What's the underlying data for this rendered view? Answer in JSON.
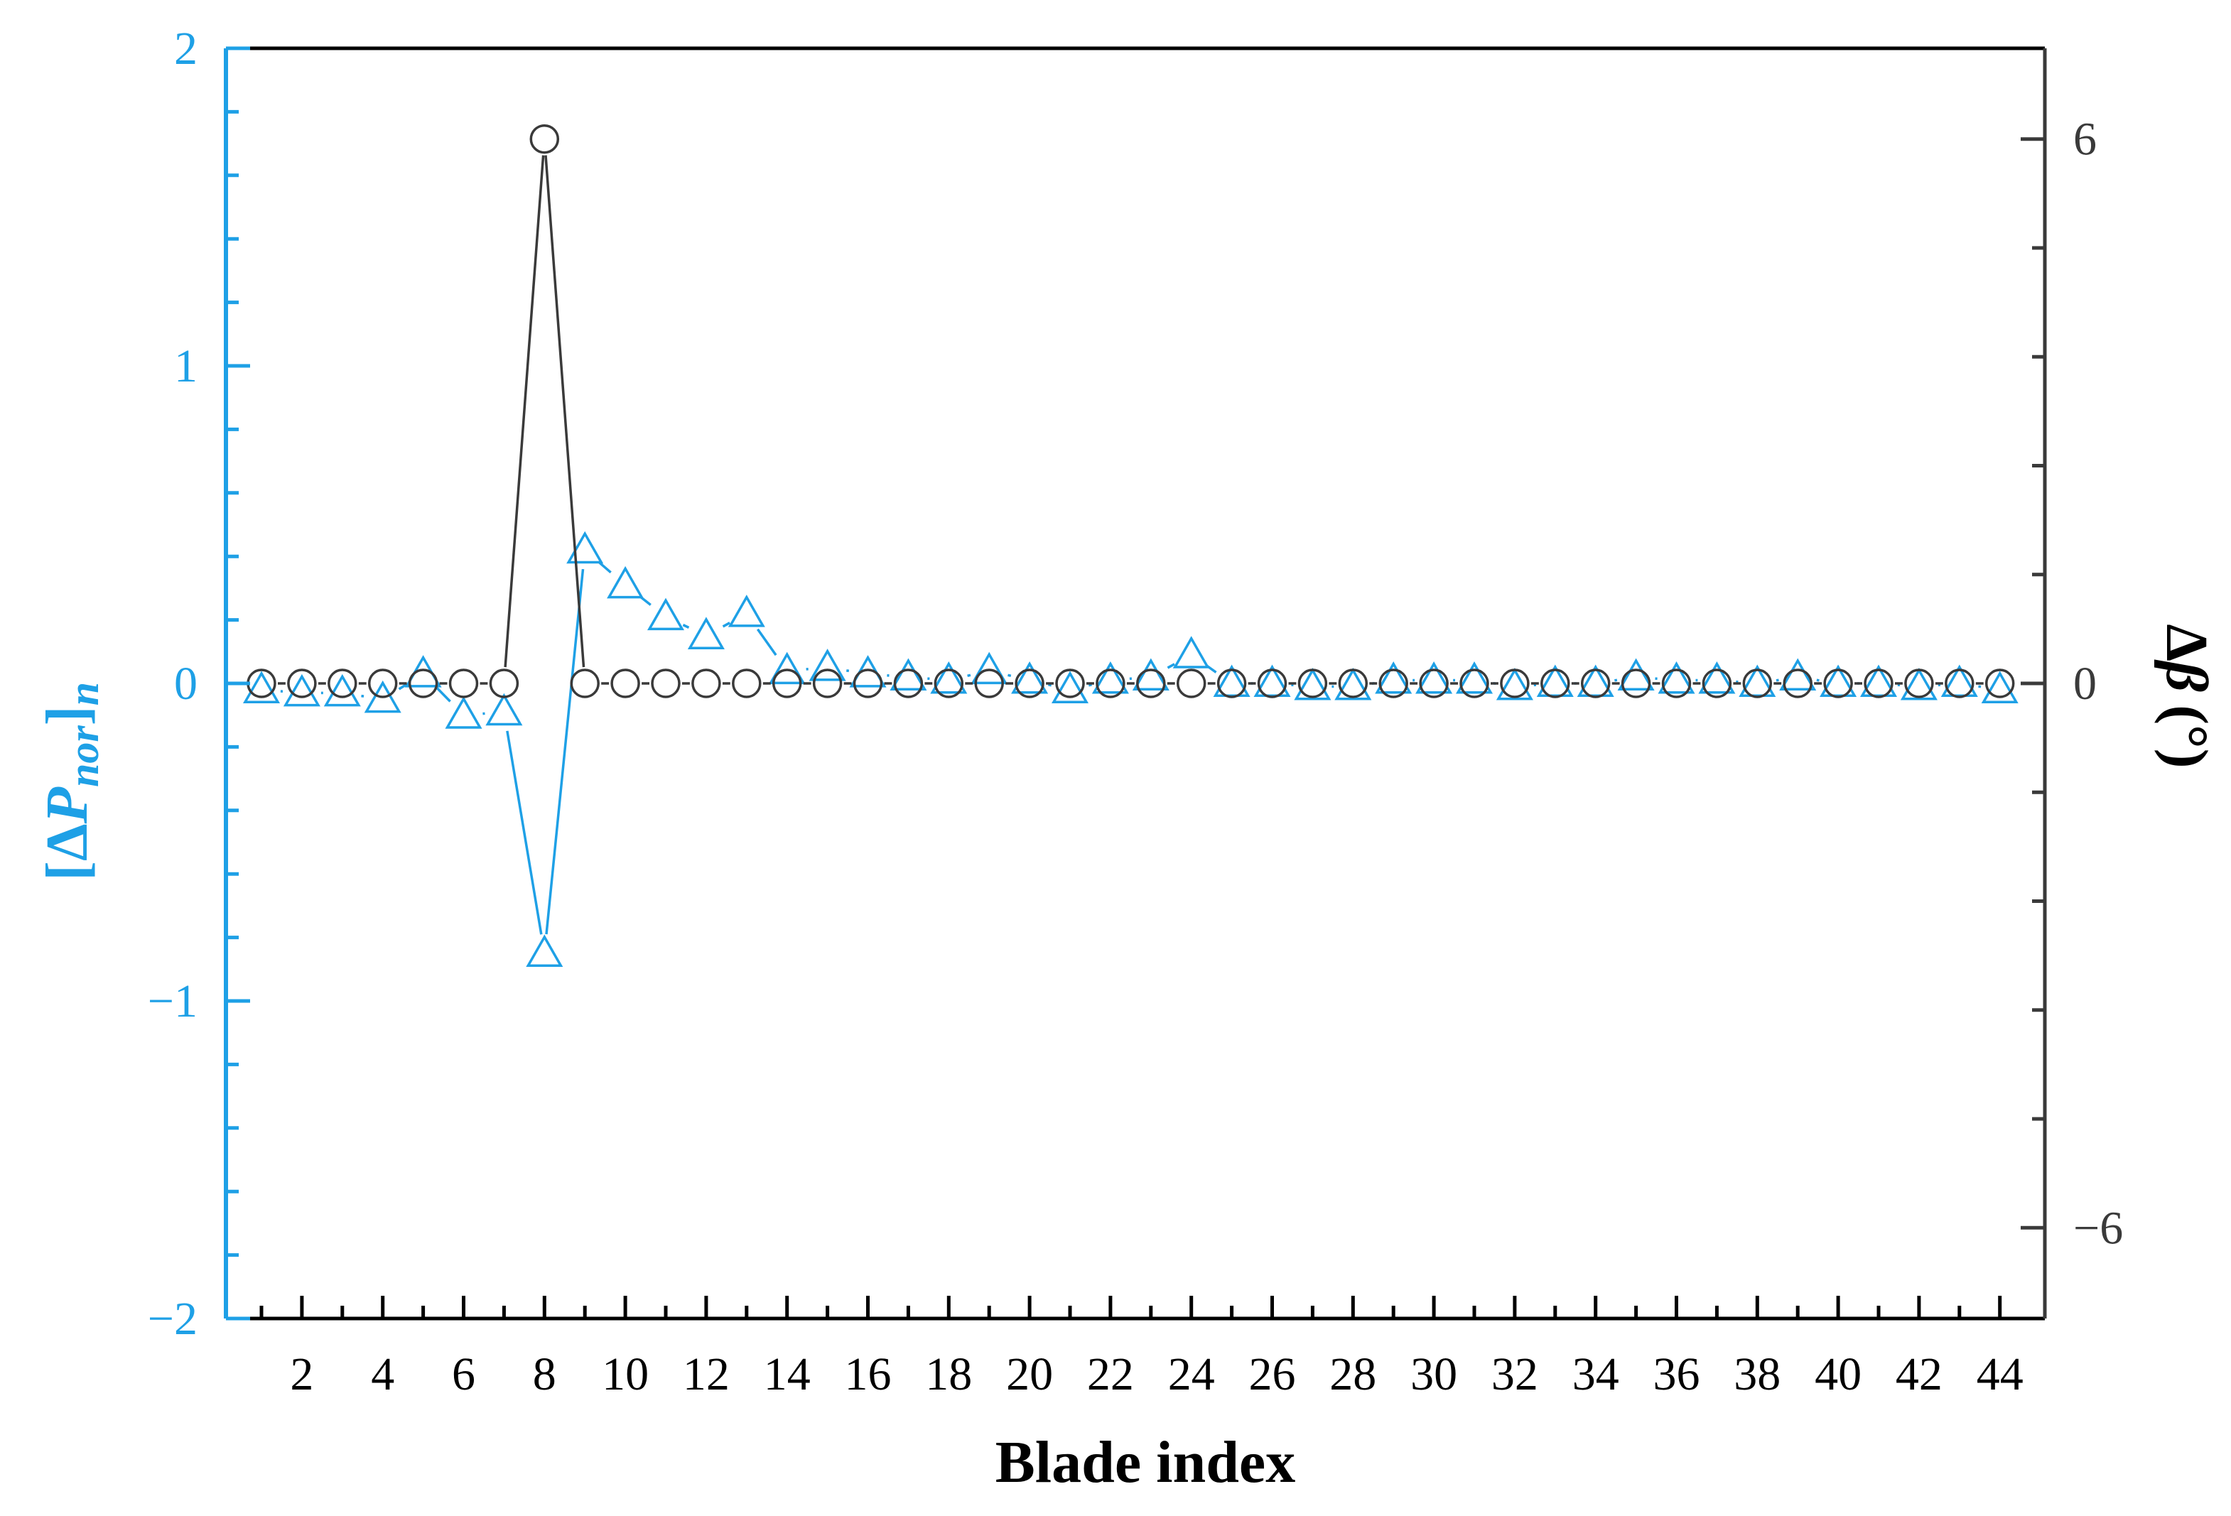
{
  "chart_data": {
    "type": "line",
    "xlabel": "Blade index",
    "ylabel_left": {
      "bracket_open": "[",
      "delta": "Δ",
      "var": "P",
      "sub": "nor",
      "bracket_close": "]",
      "sub2": "n"
    },
    "ylabel_right": {
      "delta": "Δ",
      "var": "β",
      "unit": "(°)"
    },
    "xlim": [
      0,
      45
    ],
    "ylim_left": [
      -2,
      2
    ],
    "ylim_right": [
      -7,
      7
    ],
    "x_ticks": [
      "2",
      "4",
      "6",
      "8",
      "10",
      "12",
      "14",
      "16",
      "18",
      "20",
      "22",
      "24",
      "26",
      "28",
      "30",
      "32",
      "34",
      "36",
      "38",
      "40",
      "42",
      "44"
    ],
    "y_ticks_left": [
      "2",
      "1",
      "0",
      "−1",
      "−2"
    ],
    "y_ticks_right": [
      "6",
      "0",
      "−6"
    ],
    "grid": false,
    "left_axis_color": "#1ea0e6",
    "right_axis_color": "#3a3a3a",
    "series": [
      {
        "axis": "left",
        "marker": "triangle",
        "color": "#1ea0e6",
        "x": [
          1,
          2,
          3,
          4,
          5,
          6,
          7,
          8,
          9,
          10,
          11,
          12,
          13,
          14,
          15,
          16,
          17,
          18,
          19,
          20,
          21,
          22,
          23,
          24,
          25,
          26,
          27,
          28,
          29,
          30,
          31,
          32,
          33,
          34,
          35,
          36,
          37,
          38,
          39,
          40,
          41,
          42,
          43,
          44
        ],
        "values": [
          -0.02,
          -0.03,
          -0.03,
          -0.05,
          0.03,
          -0.1,
          -0.09,
          -0.85,
          0.42,
          0.31,
          0.21,
          0.15,
          0.22,
          0.04,
          0.05,
          0.03,
          0.02,
          0.01,
          0.04,
          0.01,
          -0.02,
          0.01,
          0.02,
          0.09,
          0.0,
          0.0,
          -0.01,
          -0.01,
          0.01,
          0.01,
          0.01,
          -0.01,
          0.0,
          0.0,
          0.02,
          0.01,
          0.01,
          0.0,
          0.02,
          0.0,
          0.0,
          -0.01,
          0.0,
          -0.02
        ]
      },
      {
        "axis": "right",
        "marker": "circle",
        "color": "#3a3a3a",
        "x": [
          1,
          2,
          3,
          4,
          5,
          6,
          7,
          8,
          9,
          10,
          11,
          12,
          13,
          14,
          15,
          16,
          17,
          18,
          19,
          20,
          21,
          22,
          23,
          24,
          25,
          26,
          27,
          28,
          29,
          30,
          31,
          32,
          33,
          34,
          35,
          36,
          37,
          38,
          39,
          40,
          41,
          42,
          43,
          44
        ],
        "values": [
          0,
          0,
          0,
          0,
          0,
          0,
          0,
          6,
          0,
          0,
          0,
          0,
          0,
          0,
          0,
          0,
          0,
          0,
          0,
          0,
          0,
          0,
          0,
          0,
          0,
          0,
          0,
          0,
          0,
          0,
          0,
          0,
          0,
          0,
          0,
          0,
          0,
          0,
          0,
          0,
          0,
          0,
          0,
          0
        ]
      }
    ]
  }
}
